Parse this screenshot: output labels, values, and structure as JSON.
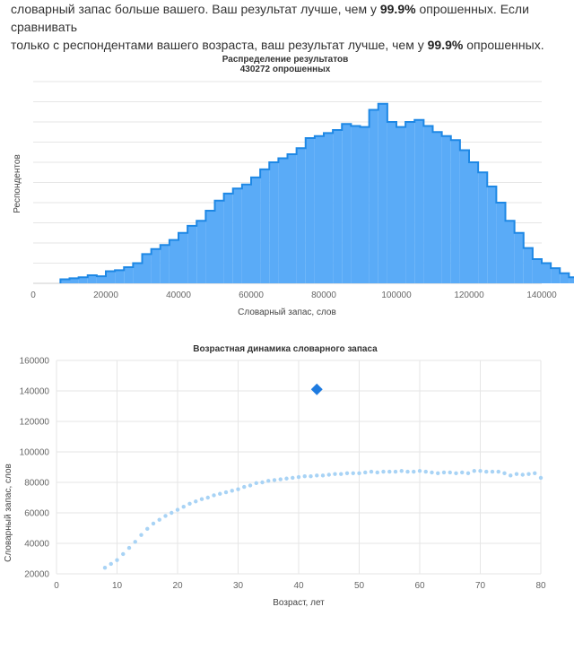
{
  "intro": {
    "line1_a": "словарный запас больше вашего. Ваш результат лучше, чем у ",
    "line1_pct": "99.9%",
    "line1_b": " опрошенных. Если сравнивать",
    "line2_a": "только с респондентами вашего возраста, ваш результат лучше, чем у ",
    "line2_pct": "99.9%",
    "line2_b": " опрошенных."
  },
  "colors": {
    "histogram_fill": "#5aabf7",
    "histogram_stroke": "#1e88e5",
    "line_points": "#a8d3f5",
    "marker": "#1e7be0"
  },
  "chart_data": [
    {
      "type": "histogram",
      "title": "Распределение результатов",
      "subtitle": "430272 опрошенных",
      "xlabel": "Словарный запас, слов",
      "ylabel": "Респондентов",
      "xlim": [
        0,
        140000
      ],
      "xticks": [
        "0",
        "20000",
        "40000",
        "60000",
        "80000",
        "100000",
        "120000",
        "140000"
      ],
      "bin_width": 2500,
      "bin_start": 7500,
      "heights": [
        0.02,
        0.025,
        0.03,
        0.04,
        0.035,
        0.06,
        0.065,
        0.08,
        0.1,
        0.145,
        0.17,
        0.19,
        0.215,
        0.25,
        0.285,
        0.31,
        0.36,
        0.41,
        0.445,
        0.47,
        0.49,
        0.525,
        0.565,
        0.6,
        0.62,
        0.64,
        0.67,
        0.72,
        0.73,
        0.745,
        0.76,
        0.79,
        0.78,
        0.775,
        0.86,
        0.89,
        0.8,
        0.775,
        0.8,
        0.81,
        0.78,
        0.75,
        0.73,
        0.71,
        0.66,
        0.6,
        0.55,
        0.48,
        0.4,
        0.31,
        0.25,
        0.175,
        0.12,
        0.1,
        0.075,
        0.05,
        0.03,
        0.02,
        0.01,
        0.005,
        0.004
      ],
      "grid": true
    },
    {
      "type": "scatter",
      "title": "Возрастная динамика словарного запаса",
      "xlabel": "Возраст, лет",
      "ylabel": "Словарный запас, слов",
      "xlim": [
        0,
        80
      ],
      "ylim": [
        20000,
        160000
      ],
      "xticks": [
        "0",
        "10",
        "20",
        "30",
        "40",
        "50",
        "60",
        "70",
        "80"
      ],
      "yticks": [
        "20000",
        "40000",
        "60000",
        "80000",
        "100000",
        "120000",
        "140000",
        "160000"
      ],
      "series": [
        {
          "x": [
            8,
            9,
            10,
            11,
            12,
            13,
            14,
            15,
            16,
            17,
            18,
            19,
            20,
            21,
            22,
            23,
            24,
            25,
            26,
            27,
            28,
            29,
            30,
            31,
            32,
            33,
            34,
            35,
            36,
            37,
            38,
            39,
            40,
            41,
            42,
            43,
            44,
            45,
            46,
            47,
            48,
            49,
            50,
            51,
            52,
            53,
            54,
            55,
            56,
            57,
            58,
            59,
            60,
            61,
            62,
            63,
            64,
            65,
            66,
            67,
            68,
            69,
            70,
            71,
            72,
            73,
            74,
            75,
            76,
            77,
            78,
            79,
            80
          ],
          "y": [
            24000,
            26500,
            29000,
            33000,
            37000,
            41000,
            45500,
            49500,
            53000,
            55500,
            58000,
            60000,
            62000,
            64000,
            66000,
            67500,
            69000,
            70000,
            71500,
            72500,
            73500,
            74500,
            75500,
            77000,
            78000,
            79500,
            80000,
            81000,
            81500,
            82000,
            82500,
            83000,
            83500,
            84000,
            84000,
            84500,
            84500,
            85000,
            85500,
            85500,
            86000,
            86000,
            86000,
            86500,
            87000,
            86500,
            87000,
            87000,
            87000,
            87500,
            87000,
            87000,
            87500,
            87000,
            86500,
            86000,
            86500,
            86500,
            86000,
            86500,
            86000,
            87500,
            87500,
            87000,
            87000,
            87000,
            86000,
            84500,
            85500,
            85000,
            85500,
            86000,
            83000
          ]
        }
      ],
      "marker": {
        "x": 43,
        "y": 141000
      }
    }
  ]
}
